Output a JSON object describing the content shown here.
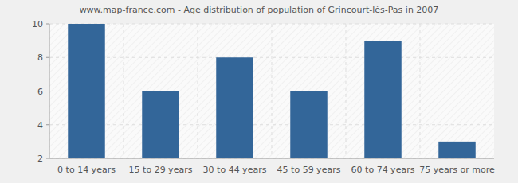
{
  "chart_data": {
    "type": "bar",
    "title": "www.map-france.com - Age distribution of population of Grincourt-lès-Pas in 2007",
    "categories": [
      "0 to 14 years",
      "15 to 29 years",
      "30 to 44 years",
      "45 to 59 years",
      "60 to 74 years",
      "75 years or more"
    ],
    "values": [
      10,
      6,
      8,
      6,
      9,
      3
    ],
    "color": "#336699",
    "ylim": [
      2,
      10
    ],
    "yticks": [
      2,
      4,
      6,
      8,
      10
    ],
    "grid": true
  }
}
